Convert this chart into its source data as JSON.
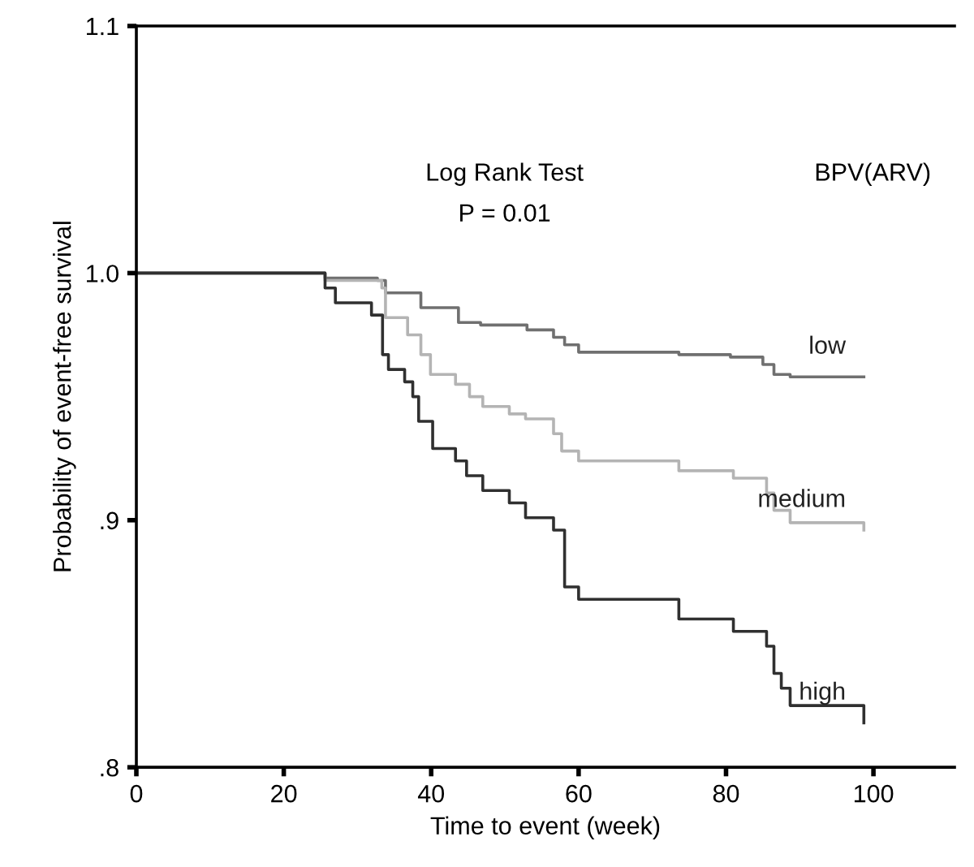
{
  "chart_data": {
    "type": "step",
    "xlabel": "Time to event (week)",
    "ylabel": "Probability of event-free survival",
    "annotations": [
      "Log Rank Test",
      "P = 0.01",
      "BPV(ARV)"
    ],
    "xlim": [
      0,
      111
    ],
    "xticks": [
      0,
      20,
      40,
      60,
      80,
      100
    ],
    "ylim": [
      0.8,
      1.1
    ],
    "yticks": [
      {
        "value": 0.8,
        "label": ".8"
      },
      {
        "value": 0.9,
        "label": ".9"
      },
      {
        "value": 1.0,
        "label": "1.0"
      },
      {
        "value": 1.1,
        "label": "1.1"
      }
    ],
    "grid": false,
    "legend": false,
    "series": [
      {
        "name": "low",
        "color": "#707070",
        "x": [
          0,
          25.6,
          32.7,
          33.8,
          38.6,
          43.7,
          46.7,
          53,
          56.6,
          58.1,
          60,
          73.6,
          80.6,
          85,
          86.5,
          88.7,
          98.7
        ],
        "values": [
          1.0,
          0.998,
          0.997,
          0.992,
          0.986,
          0.98,
          0.979,
          0.977,
          0.974,
          0.971,
          0.968,
          0.967,
          0.966,
          0.963,
          0.959,
          0.958,
          0.958
        ]
      },
      {
        "name": "medium",
        "color": "#b4b4b4",
        "x": [
          0,
          25.6,
          33.3,
          33.8,
          36.8,
          38.6,
          39.9,
          43.3,
          45.2,
          47,
          50.6,
          52.8,
          56.6,
          57.7,
          60,
          73.6,
          81,
          85.5,
          86.5,
          88.7,
          98.7
        ],
        "values": [
          1.0,
          0.997,
          0.994,
          0.982,
          0.975,
          0.967,
          0.959,
          0.955,
          0.95,
          0.946,
          0.943,
          0.941,
          0.935,
          0.928,
          0.924,
          0.92,
          0.917,
          0.911,
          0.904,
          0.899,
          0.896
        ]
      },
      {
        "name": "high",
        "color": "#303030",
        "x": [
          0,
          25.6,
          27,
          31.9,
          33.4,
          34.2,
          36.4,
          37.5,
          38.3,
          40.2,
          43.3,
          44.8,
          47,
          50.6,
          52.8,
          56.6,
          58.1,
          60,
          73.6,
          81,
          85.5,
          86.5,
          87.5,
          88.7,
          98.7
        ],
        "values": [
          1.0,
          0.994,
          0.988,
          0.983,
          0.967,
          0.961,
          0.956,
          0.95,
          0.94,
          0.929,
          0.924,
          0.918,
          0.912,
          0.907,
          0.901,
          0.896,
          0.873,
          0.868,
          0.86,
          0.855,
          0.849,
          0.838,
          0.832,
          0.825,
          0.818
        ]
      }
    ]
  }
}
